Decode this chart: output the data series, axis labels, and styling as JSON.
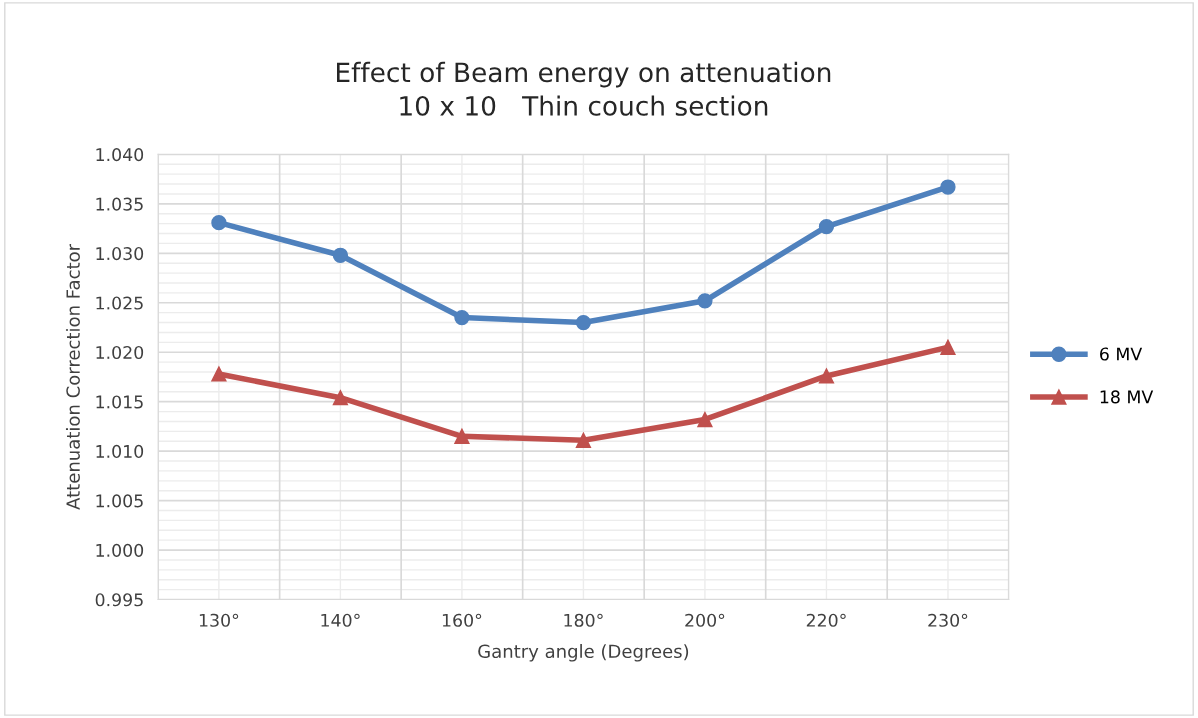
{
  "chart_data": {
    "type": "line",
    "title": "Effect of Beam energy on attenuation\n10 x 10   Thin couch section",
    "xlabel": "Gantry angle (Degrees)",
    "ylabel": "Attenuation Correction Factor",
    "categories": [
      "130°",
      "140°",
      "160°",
      "180°",
      "200°",
      "220°",
      "230°"
    ],
    "series": [
      {
        "name": "6 MV",
        "color": "#4f81bd",
        "marker": "circle",
        "values": [
          1.0331,
          1.0298,
          1.0235,
          1.023,
          1.0252,
          1.0327,
          1.0367
        ]
      },
      {
        "name": "18 MV",
        "color": "#c0504d",
        "marker": "triangle",
        "values": [
          1.0178,
          1.0154,
          1.0115,
          1.0111,
          1.0132,
          1.0176,
          1.0205
        ]
      }
    ],
    "ylim": [
      0.995,
      1.04
    ],
    "yticks": [
      {
        "value": 0.995,
        "label": "0.995"
      },
      {
        "value": 1.0,
        "label": "1.000"
      },
      {
        "value": 1.005,
        "label": "1.005"
      },
      {
        "value": 1.01,
        "label": "1.010"
      },
      {
        "value": 1.015,
        "label": "1.015"
      },
      {
        "value": 1.02,
        "label": "1.020"
      },
      {
        "value": 1.025,
        "label": "1.025"
      },
      {
        "value": 1.03,
        "label": "1.030"
      },
      {
        "value": 1.035,
        "label": "1.035"
      },
      {
        "value": 1.04,
        "label": "1.040"
      }
    ],
    "grid": true,
    "legend": "right",
    "line_style": "solid"
  }
}
